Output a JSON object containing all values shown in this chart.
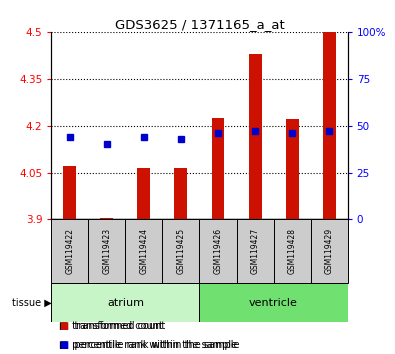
{
  "title": "GDS3625 / 1371165_a_at",
  "samples": [
    "GSM119422",
    "GSM119423",
    "GSM119424",
    "GSM119425",
    "GSM119426",
    "GSM119427",
    "GSM119428",
    "GSM119429"
  ],
  "red_values": [
    4.07,
    3.905,
    4.065,
    4.065,
    4.225,
    4.43,
    4.22,
    4.5
  ],
  "blue_values": [
    44,
    40,
    44,
    43,
    46,
    47,
    46,
    47
  ],
  "red_base": 3.9,
  "ylim_left": [
    3.9,
    4.5
  ],
  "ylim_right": [
    0,
    100
  ],
  "yticks_left": [
    3.9,
    4.05,
    4.2,
    4.35,
    4.5
  ],
  "yticks_right": [
    0,
    25,
    50,
    75,
    100
  ],
  "ytick_labels_right": [
    "0",
    "25",
    "50",
    "75",
    "100%"
  ],
  "tissue_groups": [
    {
      "label": "atrium",
      "samples": [
        0,
        1,
        2,
        3
      ],
      "color": "#c8f5c8"
    },
    {
      "label": "ventricle",
      "samples": [
        4,
        5,
        6,
        7
      ],
      "color": "#70e070"
    }
  ],
  "tissue_label": "tissue",
  "bar_color_red": "#cc1100",
  "bar_color_blue": "#0000cc",
  "bg_color": "#ffffff",
  "label_area_color": "#cccccc",
  "bar_width": 0.35
}
